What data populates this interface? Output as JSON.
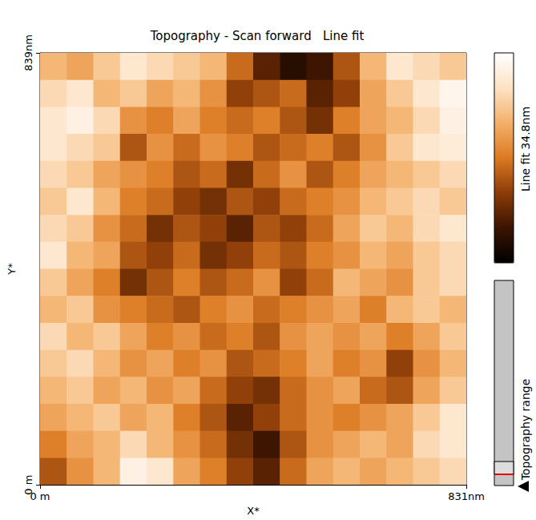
{
  "chart_data": {
    "type": "heatmap",
    "title": "Topography - Scan forward   Line fit",
    "x_label": "X*",
    "y_label": "Y*",
    "xlim": [
      0,
      831
    ],
    "ylim": [
      0,
      839
    ],
    "xticks": [
      {
        "value": 0,
        "label": "0 m"
      },
      {
        "value": 831,
        "label": "831nm"
      }
    ],
    "yticks": [
      {
        "value": 0,
        "label": "0 m"
      },
      {
        "value": 839,
        "label": "839nm"
      }
    ],
    "grid": false,
    "cells": [
      [
        24,
        22,
        26,
        30,
        28,
        26,
        24,
        16,
        8,
        4,
        6,
        14,
        24,
        30,
        28,
        26
      ],
      [
        28,
        30,
        24,
        26,
        22,
        24,
        20,
        12,
        14,
        16,
        8,
        12,
        22,
        26,
        30,
        33
      ],
      [
        30,
        32,
        28,
        20,
        18,
        22,
        18,
        16,
        18,
        14,
        10,
        18,
        22,
        24,
        28,
        32
      ],
      [
        30,
        28,
        26,
        14,
        20,
        16,
        20,
        18,
        14,
        16,
        18,
        14,
        20,
        26,
        30,
        31
      ],
      [
        28,
        26,
        22,
        20,
        18,
        14,
        16,
        10,
        16,
        20,
        14,
        18,
        22,
        24,
        26,
        28
      ],
      [
        26,
        30,
        24,
        18,
        16,
        12,
        10,
        14,
        12,
        16,
        18,
        20,
        24,
        26,
        28,
        26
      ],
      [
        28,
        26,
        20,
        16,
        10,
        14,
        12,
        8,
        14,
        12,
        16,
        22,
        26,
        24,
        28,
        30
      ],
      [
        30,
        24,
        22,
        14,
        12,
        16,
        10,
        12,
        16,
        14,
        18,
        20,
        24,
        22,
        26,
        28
      ],
      [
        26,
        22,
        18,
        10,
        14,
        18,
        14,
        16,
        20,
        12,
        16,
        24,
        22,
        20,
        26,
        28
      ],
      [
        24,
        26,
        20,
        18,
        16,
        14,
        18,
        20,
        16,
        18,
        20,
        22,
        18,
        24,
        26,
        24
      ],
      [
        28,
        24,
        26,
        22,
        18,
        20,
        16,
        18,
        14,
        20,
        22,
        20,
        22,
        18,
        22,
        26
      ],
      [
        26,
        28,
        24,
        20,
        22,
        18,
        20,
        14,
        16,
        18,
        22,
        18,
        20,
        12,
        20,
        24
      ],
      [
        24,
        26,
        22,
        24,
        20,
        22,
        16,
        12,
        10,
        16,
        20,
        22,
        16,
        14,
        22,
        26
      ],
      [
        22,
        24,
        26,
        22,
        24,
        18,
        14,
        8,
        12,
        16,
        20,
        18,
        20,
        22,
        26,
        30
      ],
      [
        18,
        22,
        24,
        28,
        24,
        20,
        16,
        10,
        6,
        14,
        20,
        22,
        24,
        22,
        28,
        30
      ],
      [
        14,
        20,
        24,
        32,
        30,
        22,
        18,
        12,
        8,
        16,
        22,
        24,
        22,
        24,
        26,
        28
      ]
    ],
    "colorbar": {
      "label": "Line fit 34.8nm",
      "range": [
        0,
        34.8
      ]
    },
    "annotations": [
      "Topography range"
    ]
  }
}
